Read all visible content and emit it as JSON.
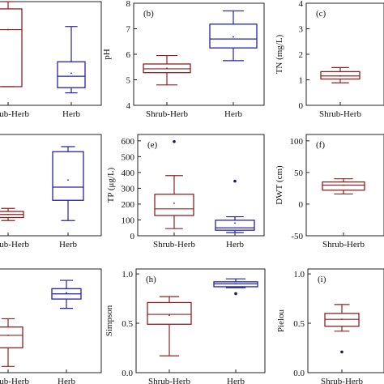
{
  "chart_data": [
    {
      "panel": "a",
      "label": "",
      "type": "box",
      "ylabel": "",
      "yticks": [],
      "ylim": [
        0,
        1
      ],
      "categories": [
        "Shrub-Herb",
        "Herb"
      ],
      "boxes": [
        {
          "category": "Shrub-Herb",
          "color": "#8b2323",
          "whisker_low": 0.18,
          "q1": 0.18,
          "median": 0.73,
          "mean": 0.73,
          "q3": 0.93,
          "whisker_high": 1.0,
          "outliers": []
        },
        {
          "category": "Herb",
          "color": "#2323a8",
          "whisker_low": 0.12,
          "q1": 0.17,
          "median": 0.28,
          "mean": 0.31,
          "q3": 0.42,
          "whisker_high": 0.76,
          "outliers": []
        }
      ]
    },
    {
      "panel": "b",
      "label": "(b)",
      "type": "box",
      "ylabel": "pH",
      "yticks": [
        4,
        5,
        6,
        7,
        8
      ],
      "ylim": [
        4,
        8
      ],
      "categories": [
        "Shrub-Herb",
        "Herb"
      ],
      "boxes": [
        {
          "category": "Shrub-Herb",
          "color": "#8b2323",
          "whisker_low": 4.8,
          "q1": 5.28,
          "median": 5.43,
          "mean": 5.45,
          "q3": 5.62,
          "whisker_high": 5.95,
          "outliers": []
        },
        {
          "category": "Herb",
          "color": "#2323a8",
          "whisker_low": 5.75,
          "q1": 6.25,
          "median": 6.6,
          "mean": 6.68,
          "q3": 7.18,
          "whisker_high": 7.7,
          "outliers": []
        }
      ]
    },
    {
      "panel": "c",
      "label": "(c)",
      "type": "box",
      "ylabel": "TN (mg/L)",
      "yticks": [
        0,
        1,
        2,
        3,
        4
      ],
      "ylim": [
        0,
        4
      ],
      "categories": [
        "Shrub-Herb"
      ],
      "boxes": [
        {
          "category": "Shrub-Herb",
          "color": "#8b2323",
          "whisker_low": 0.88,
          "q1": 1.03,
          "median": 1.15,
          "mean": 1.15,
          "q3": 1.32,
          "whisker_high": 1.48,
          "outliers": []
        }
      ]
    },
    {
      "panel": "d",
      "label": "",
      "type": "box",
      "ylabel": "",
      "yticks": [],
      "ylim": [
        0,
        1
      ],
      "categories": [
        "Shrub-Herb",
        "Herb"
      ],
      "boxes": [
        {
          "category": "Shrub-Herb",
          "color": "#8b2323",
          "whisker_low": 0.15,
          "q1": 0.18,
          "median": 0.21,
          "mean": 0.21,
          "q3": 0.24,
          "whisker_high": 0.27,
          "outliers": []
        },
        {
          "category": "Herb",
          "color": "#2323a8",
          "whisker_low": 0.15,
          "q1": 0.35,
          "median": 0.48,
          "mean": 0.55,
          "q3": 0.83,
          "whisker_high": 0.88,
          "outliers": []
        }
      ]
    },
    {
      "panel": "e",
      "label": "(e)",
      "type": "box",
      "ylabel": "TP (μg/L)",
      "yticks": [
        0,
        100,
        200,
        300,
        400,
        500,
        600
      ],
      "ylim": [
        0,
        640
      ],
      "categories": [
        "Shrub-Herb",
        "Herb"
      ],
      "boxes": [
        {
          "category": "Shrub-Herb",
          "color": "#8b2323",
          "whisker_low": 45,
          "q1": 128,
          "median": 170,
          "mean": 205,
          "q3": 262,
          "whisker_high": 380,
          "outliers": [
            595
          ]
        },
        {
          "category": "Herb",
          "color": "#2323a8",
          "whisker_low": 20,
          "q1": 35,
          "median": 50,
          "mean": 80,
          "q3": 98,
          "whisker_high": 120,
          "outliers": [
            345
          ]
        }
      ]
    },
    {
      "panel": "f",
      "label": "(f)",
      "type": "box",
      "ylabel": "DWT (cm)",
      "yticks": [
        -50,
        0,
        50,
        100
      ],
      "ylim": [
        -50,
        110
      ],
      "categories": [
        "Shrub-Herb"
      ],
      "boxes": [
        {
          "category": "Shrub-Herb",
          "color": "#8b2323",
          "whisker_low": 16,
          "q1": 22,
          "median": 30,
          "mean": 30,
          "q3": 35,
          "whisker_high": 40,
          "outliers": []
        }
      ]
    },
    {
      "panel": "g",
      "label": "",
      "type": "box",
      "ylabel": "",
      "yticks": [],
      "ylim": [
        0,
        1
      ],
      "categories": [
        "Shrub-Herb",
        "Herb"
      ],
      "boxes": [
        {
          "category": "Shrub-Herb",
          "color": "#8b2323",
          "whisker_low": 0.06,
          "q1": 0.24,
          "median": 0.36,
          "mean": 0.36,
          "q3": 0.44,
          "whisker_high": 0.52,
          "outliers": []
        },
        {
          "category": "Herb",
          "color": "#2323a8",
          "whisker_low": 0.62,
          "q1": 0.71,
          "median": 0.76,
          "mean": 0.77,
          "q3": 0.81,
          "whisker_high": 0.89,
          "outliers": []
        }
      ]
    },
    {
      "panel": "h",
      "label": "(h)",
      "type": "box",
      "ylabel": "Simpson",
      "yticks": [
        0.0,
        0.5,
        1.0
      ],
      "ylim": [
        0,
        1.05
      ],
      "ticklabels": [
        "0.0",
        "0.5",
        "1.0"
      ],
      "categories": [
        "Shrub-Herb",
        "Herb"
      ],
      "boxes": [
        {
          "category": "Shrub-Herb",
          "color": "#8b2323",
          "whisker_low": 0.17,
          "q1": 0.49,
          "median": 0.59,
          "mean": 0.58,
          "q3": 0.71,
          "whisker_high": 0.77,
          "outliers": []
        },
        {
          "category": "Herb",
          "color": "#2323a8",
          "whisker_low": 0.86,
          "q1": 0.87,
          "median": 0.9,
          "mean": 0.9,
          "q3": 0.92,
          "whisker_high": 0.95,
          "outliers": [
            0.8
          ]
        }
      ]
    },
    {
      "panel": "i",
      "label": "(i)",
      "type": "box",
      "ylabel": "Pielou",
      "yticks": [
        0.0,
        0.5,
        1.0
      ],
      "ylim": [
        0,
        1.05
      ],
      "ticklabels": [
        "0.0",
        "0.5",
        "1.0"
      ],
      "categories": [
        "Shrub-Herb"
      ],
      "boxes": [
        {
          "category": "Shrub-Herb",
          "color": "#8b2323",
          "whisker_low": 0.42,
          "q1": 0.47,
          "median": 0.54,
          "mean": 0.54,
          "q3": 0.6,
          "whisker_high": 0.69,
          "outliers": [
            0.21
          ]
        }
      ]
    }
  ]
}
